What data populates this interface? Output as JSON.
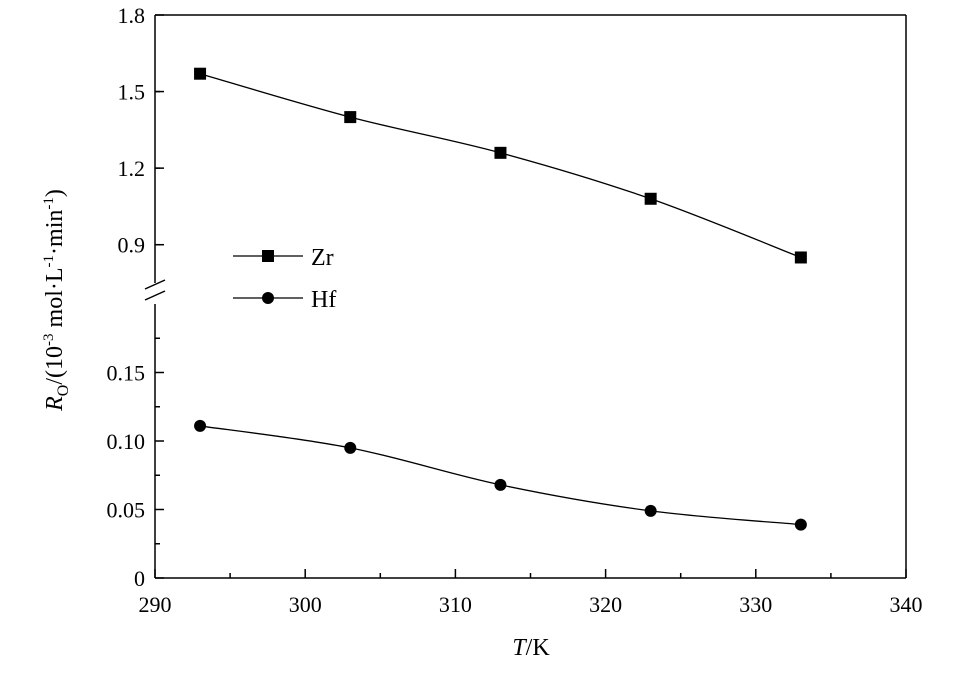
{
  "chart_data": {
    "type": "line",
    "x": [
      293,
      303,
      313,
      323,
      333
    ],
    "xlim": [
      290,
      340
    ],
    "x_ticks": [
      "290",
      "300",
      "310",
      "320",
      "330",
      "340"
    ],
    "xlabel_italic": "T",
    "xlabel_rest": "/K",
    "ylabel_italic": "R",
    "ylabel_subscript": "O",
    "ylabel_rest": "/(10",
    "ylabel_exp1": "-3",
    "ylabel_unit1": " mol·L",
    "ylabel_exp2": "-1",
    "ylabel_unit2": "·min",
    "ylabel_exp3": "-1",
    "ylabel_close": ")",
    "y_axis_broken": true,
    "upper_ylim": [
      0.75,
      1.8
    ],
    "upper_y_ticks": [
      "0.9",
      "1.2",
      "1.5",
      "1.8"
    ],
    "lower_ylim": [
      0,
      0.2
    ],
    "lower_y_ticks": [
      "0",
      "0.05",
      "0.10",
      "0.15"
    ],
    "grid": false,
    "legend_position": "left-middle",
    "series": [
      {
        "name": "Zr",
        "marker": "square",
        "segment": "upper",
        "values": [
          1.57,
          1.4,
          1.26,
          1.08,
          0.85
        ]
      },
      {
        "name": "Hf",
        "marker": "circle",
        "segment": "lower",
        "values": [
          0.111,
          0.095,
          0.068,
          0.049,
          0.039
        ]
      }
    ]
  }
}
